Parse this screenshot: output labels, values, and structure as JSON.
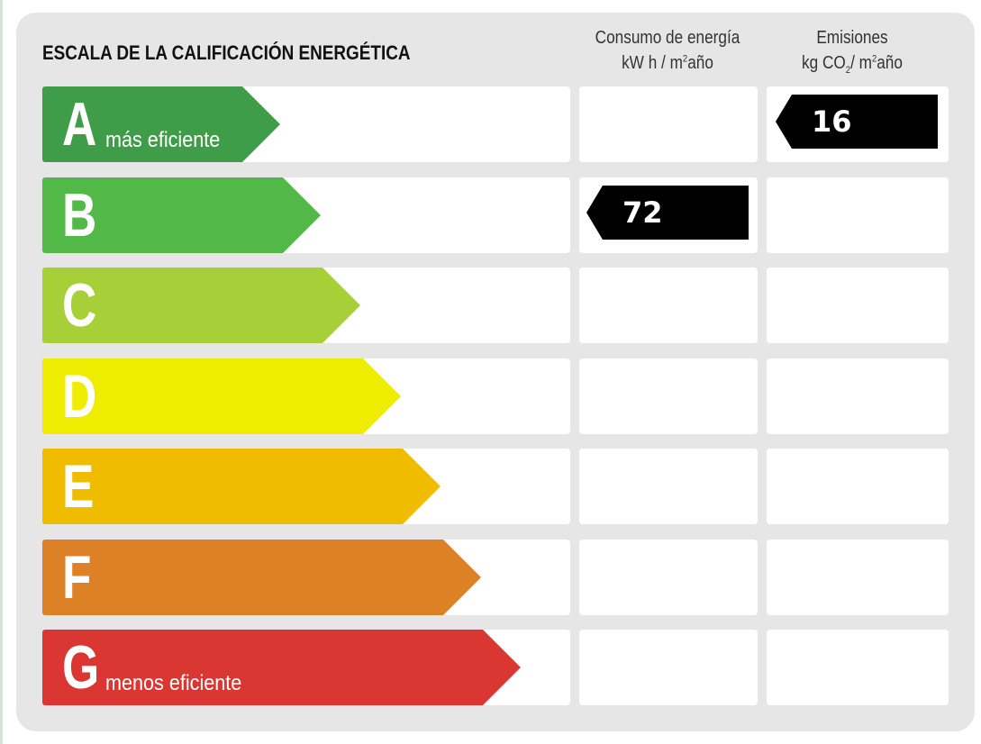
{
  "title": "ESCALA DE LA CALIFICACIÓN ENERGÉTICA",
  "columns": {
    "energy": {
      "line1": "Consumo de energía",
      "unit_pre": "kW h / m",
      "unit_sup": "2",
      "unit_post": "año"
    },
    "emissions": {
      "line1": "Emisiones",
      "unit_pre": "kg CO",
      "unit_sub": "2",
      "unit_mid": "/ m",
      "unit_sup": "2",
      "unit_post": "año"
    }
  },
  "ratings": [
    {
      "letter": "A",
      "label": "más eficiente",
      "color": "#3f9d4a"
    },
    {
      "letter": "B",
      "label": "",
      "color": "#52b847"
    },
    {
      "letter": "C",
      "label": "",
      "color": "#a7cf38"
    },
    {
      "letter": "D",
      "label": "",
      "color": "#eeec00"
    },
    {
      "letter": "E",
      "label": "",
      "color": "#efbc00"
    },
    {
      "letter": "F",
      "label": "",
      "color": "#dd8126"
    },
    {
      "letter": "G",
      "label": "menos eficiente",
      "color": "#da3732"
    }
  ],
  "energy_rating": {
    "letter": "B",
    "value": "72"
  },
  "emissions_rating": {
    "letter": "A",
    "value": "16"
  }
}
